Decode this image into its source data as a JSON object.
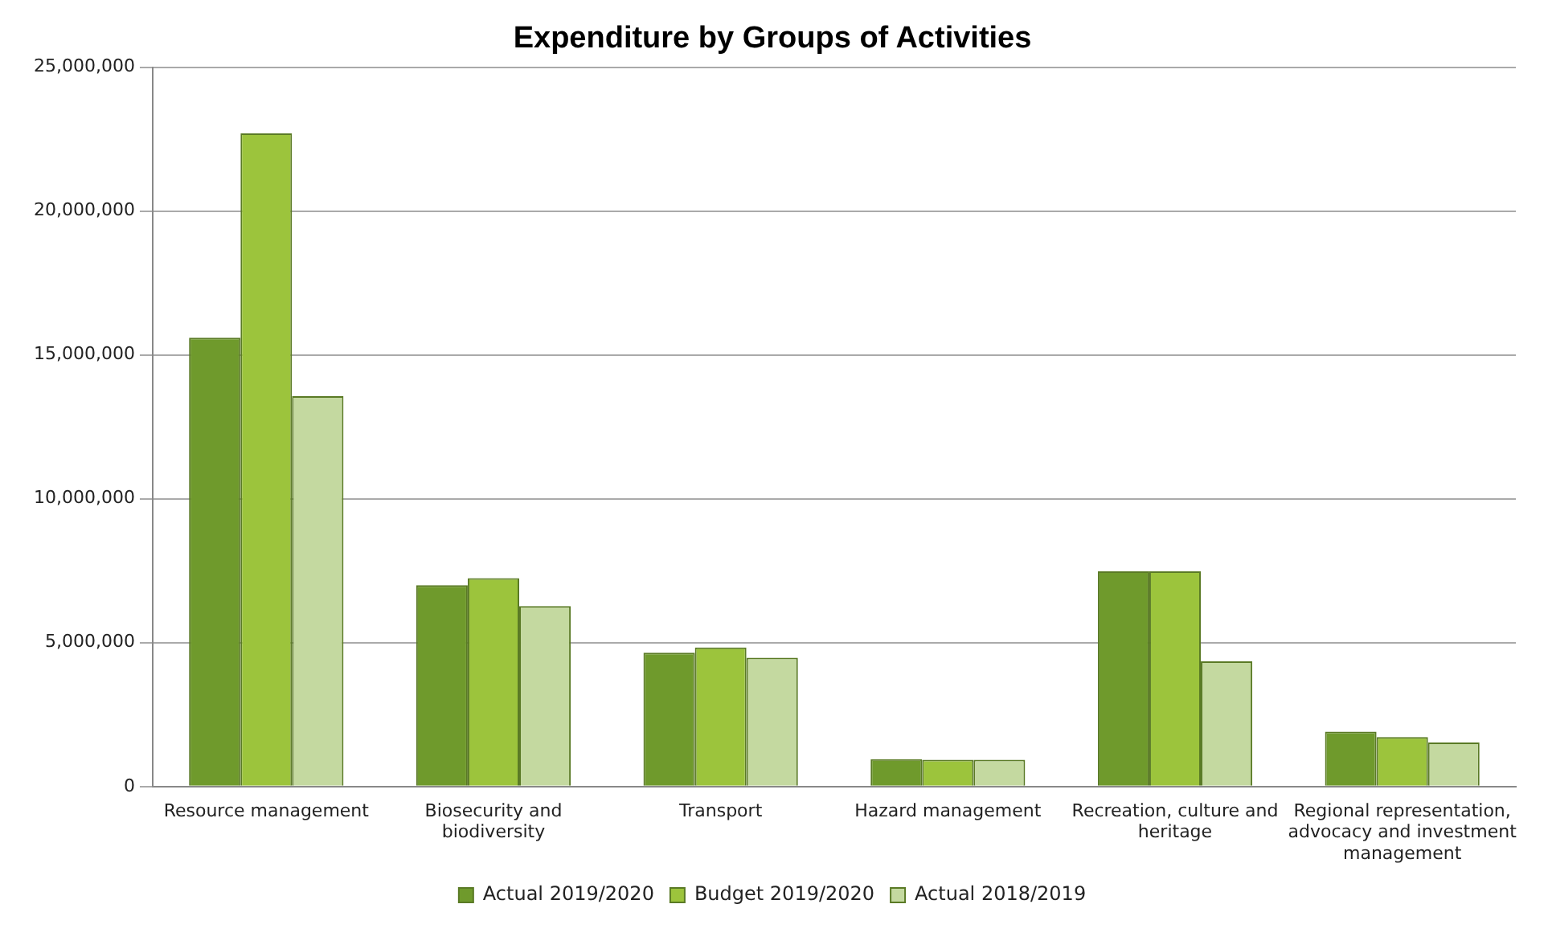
{
  "chart_data": {
    "type": "bar",
    "title": "Expenditure by Groups of Activities",
    "categories": [
      "Resource management",
      "Biosecurity and biodiversity",
      "Transport",
      "Hazard management",
      "Recreation, culture and heritage",
      "Regional representation, advocacy and investment management"
    ],
    "series": [
      {
        "name": "Actual 2019/2020",
        "color": "#6f9a2c",
        "values": [
          15600000,
          7000000,
          4650000,
          950000,
          7480000,
          1910000
        ]
      },
      {
        "name": "Budget 2019/2020",
        "color": "#9cc43c",
        "values": [
          22700000,
          7240000,
          4830000,
          930000,
          7480000,
          1720000
        ]
      },
      {
        "name": "Actual 2018/2019",
        "color": "#c4d9a0",
        "values": [
          13570000,
          6270000,
          4480000,
          930000,
          4350000,
          1530000
        ]
      }
    ],
    "ylim": [
      0,
      25000000
    ],
    "yticks": [
      0,
      {
        "value": 5000000,
        "label": "5,000,000"
      },
      {
        "value": 10000000,
        "label": "10,000,000"
      },
      {
        "value": 15000000,
        "label": "15,000,000"
      },
      {
        "value": 20000000,
        "label": "20,000,000"
      },
      {
        "value": 25000000,
        "label": "25,000,000"
      }
    ],
    "grid": "y",
    "legend": "bottom"
  }
}
